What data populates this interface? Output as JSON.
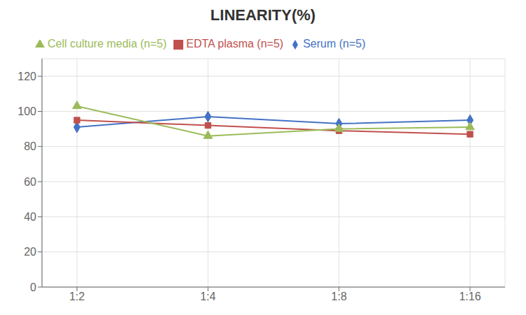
{
  "chart_data": {
    "type": "line",
    "title": "LINEARITY(%)",
    "categories": [
      "1:2",
      "1:4",
      "1:8",
      "1:16"
    ],
    "series": [
      {
        "name": "Serum (n=5)",
        "color": "#4472C4",
        "marker": "diamond",
        "values": [
          91,
          97,
          93,
          95
        ]
      },
      {
        "name": "EDTA plasma (n=5)",
        "color": "#C0504D",
        "marker": "square",
        "values": [
          95,
          92,
          89,
          87
        ]
      },
      {
        "name": "Cell culture media (n=5)",
        "color": "#9BBB59",
        "marker": "triangle",
        "values": [
          103,
          86,
          90,
          91
        ]
      }
    ],
    "ylim": [
      0,
      130
    ],
    "yticks": [
      0,
      20,
      40,
      60,
      80,
      100,
      120
    ],
    "grid": true,
    "legend": "top"
  }
}
